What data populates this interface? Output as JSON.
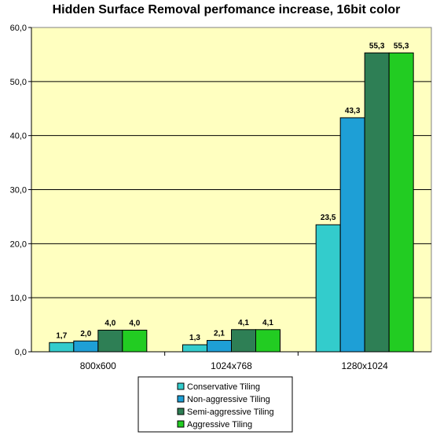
{
  "chart_data": {
    "type": "bar",
    "title": "Hidden Surface Removal perfomance increase, 16bit color",
    "xlabel": "",
    "ylabel": "",
    "ylim": [
      0,
      60
    ],
    "yticks": [
      "0,0",
      "10,0",
      "20,0",
      "30,0",
      "40,0",
      "50,0",
      "60,0"
    ],
    "grid": true,
    "legend_position": "bottom",
    "plot_background": "#ffffc0",
    "categories": [
      "800x600",
      "1024x768",
      "1280x1024"
    ],
    "series": [
      {
        "name": "Conservative Tiling",
        "color": "#33cccc",
        "values": [
          1.7,
          1.3,
          23.5
        ],
        "labels": [
          "1,7",
          "1,3",
          "23,5"
        ]
      },
      {
        "name": "Non-aggressive Tiling",
        "color": "#1e9fd6",
        "values": [
          2.0,
          2.1,
          43.3
        ],
        "labels": [
          "2,0",
          "2,1",
          "43,3"
        ]
      },
      {
        "name": "Semi-aggressive Tiling",
        "color": "#2e7f55",
        "values": [
          4.0,
          4.1,
          55.3
        ],
        "labels": [
          "4,0",
          "4,1",
          "55,3"
        ]
      },
      {
        "name": "Aggressive Tiling",
        "color": "#22cc22",
        "values": [
          4.0,
          4.1,
          55.3
        ],
        "labels": [
          "4,0",
          "4,1",
          "55,3"
        ]
      }
    ]
  }
}
